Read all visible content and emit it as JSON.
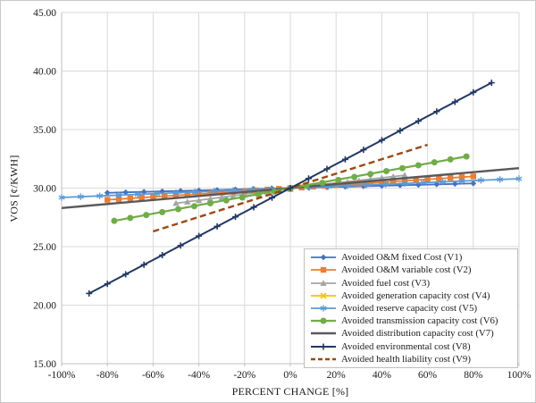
{
  "figure": {
    "background": "#FFFFFF",
    "border_color": "#C9C9C9"
  },
  "chart_data": {
    "type": "line",
    "title": "",
    "xlabel": "PERCENT CHANGE [%]",
    "ylabel": "VOS [¢/KWH]",
    "xlim": [
      -100,
      100
    ],
    "ylim": [
      15,
      45
    ],
    "x_tick_values": [
      -100,
      -80,
      -60,
      -40,
      -20,
      0,
      20,
      40,
      60,
      80,
      100
    ],
    "x_ticks": [
      "-100%",
      "-80%",
      "-60%",
      "-40%",
      "-20%",
      "0%",
      "20%",
      "40%",
      "60%",
      "80%",
      "100%"
    ],
    "y_tick_values": [
      15,
      20,
      25,
      30,
      35,
      40,
      45
    ],
    "y_ticks": [
      "15.00",
      "20.00",
      "25.00",
      "30.00",
      "35.00",
      "40.00",
      "45.00"
    ],
    "grid": true,
    "gridline_color": "#D9D9D9",
    "axis_color": "#BFBFBF",
    "legend_position": "inside-lower-right",
    "common_point": [
      0,
      30.0
    ],
    "series": [
      {
        "name": "Avoided O&M fixed Cost (V1)",
        "color": "#4472C4",
        "marker": "diamond",
        "dash": "solid",
        "line_width": 1.8,
        "marker_count": 21,
        "points": [
          [
            -80,
            29.6
          ],
          [
            0,
            30.0
          ],
          [
            80,
            30.4
          ]
        ]
      },
      {
        "name": "Avoided O&M variable cost (V2)",
        "color": "#ED7D31",
        "marker": "square",
        "dash": "solid",
        "line_width": 1.8,
        "marker_count": 33,
        "points": [
          [
            -80,
            29.0
          ],
          [
            0,
            30.0
          ],
          [
            80,
            31.0
          ]
        ]
      },
      {
        "name": "Avoided fuel cost (V3)",
        "color": "#A5A5A5",
        "marker": "triangle",
        "dash": "solid",
        "line_width": 1.8,
        "marker_count": 21,
        "points": [
          [
            -50,
            28.7
          ],
          [
            0,
            30.0
          ],
          [
            50,
            31.1
          ]
        ]
      },
      {
        "name": "Avoided generation capacity cost (V4)",
        "color": "#FFC000",
        "marker": "x",
        "dash": "solid",
        "line_width": 1.8,
        "marker_count": 3,
        "points": [
          [
            -5,
            29.9
          ],
          [
            0,
            30.0
          ],
          [
            5,
            30.1
          ]
        ]
      },
      {
        "name": "Avoided reserve capacity cost (V5)",
        "color": "#5B9BD5",
        "marker": "asterisk",
        "dash": "solid",
        "line_width": 1.8,
        "marker_count": 25,
        "points": [
          [
            -100,
            29.2
          ],
          [
            0,
            30.0
          ],
          [
            100,
            30.8
          ]
        ]
      },
      {
        "name": "Avoided transmission capacity cost (V6)",
        "color": "#70AD47",
        "marker": "circle",
        "dash": "solid",
        "line_width": 2.2,
        "marker_count": 23,
        "points": [
          [
            -77,
            27.2
          ],
          [
            0,
            30.0
          ],
          [
            77,
            32.7
          ]
        ]
      },
      {
        "name": "Avoided distribution capacity cost (V7)",
        "color": "#595959",
        "marker": "none",
        "dash": "solid",
        "line_width": 2.4,
        "marker_count": 0,
        "points": [
          [
            -100,
            28.3
          ],
          [
            0,
            30.0
          ],
          [
            100,
            31.7
          ]
        ]
      },
      {
        "name": "Avoided environmental cost (V8)",
        "color": "#203864",
        "marker": "plus",
        "dash": "solid",
        "line_width": 2.0,
        "marker_count": 23,
        "points": [
          [
            -88,
            21.0
          ],
          [
            0,
            30.0
          ],
          [
            88,
            39.0
          ]
        ]
      },
      {
        "name": "Avoided health liability cost (V9)",
        "color": "#9E480E",
        "marker": "none",
        "dash": "dashed",
        "line_width": 2.4,
        "marker_count": 0,
        "points": [
          [
            -60,
            26.3
          ],
          [
            0,
            30.0
          ],
          [
            60,
            33.7
          ]
        ]
      }
    ],
    "draw_order": [
      3,
      0,
      2,
      1,
      4,
      6,
      5,
      8,
      7
    ]
  }
}
